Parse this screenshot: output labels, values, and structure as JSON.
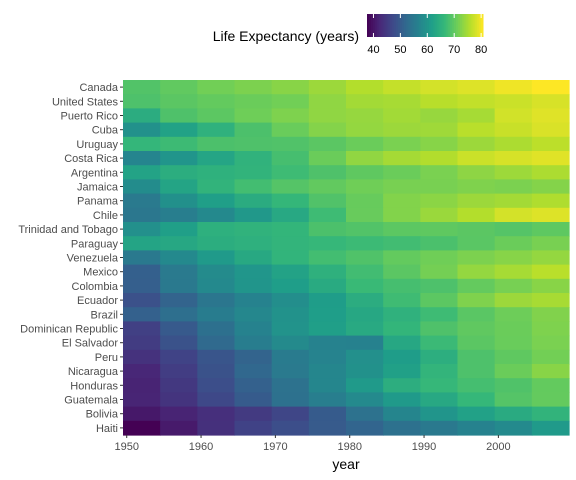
{
  "chart_data": {
    "type": "heatmap",
    "title": "",
    "xlabel": "year",
    "ylabel": "",
    "x": [
      1952,
      1957,
      1962,
      1967,
      1972,
      1977,
      1982,
      1987,
      1992,
      1997,
      2002,
      2007
    ],
    "x_ticks": [
      1950,
      1960,
      1970,
      1980,
      1990,
      2000
    ],
    "xlim": [
      1949.5,
      2009.5
    ],
    "y": [
      "Canada",
      "United States",
      "Puerto Rico",
      "Cuba",
      "Uruguay",
      "Costa Rica",
      "Argentina",
      "Jamaica",
      "Panama",
      "Chile",
      "Trinidad and Tobago",
      "Paraguay",
      "Venezuela",
      "Mexico",
      "Colombia",
      "Ecuador",
      "Brazil",
      "Dominican Republic",
      "El Salvador",
      "Peru",
      "Nicaragua",
      "Honduras",
      "Guatemala",
      "Bolivia",
      "Haiti"
    ],
    "values": [
      [
        68.8,
        70.0,
        71.3,
        72.1,
        72.9,
        74.2,
        75.8,
        76.9,
        77.9,
        78.6,
        79.8,
        80.7
      ],
      [
        68.4,
        69.5,
        70.2,
        70.8,
        71.3,
        73.4,
        74.7,
        75.0,
        76.1,
        76.8,
        77.3,
        78.2
      ],
      [
        64.3,
        68.5,
        69.6,
        71.1,
        72.2,
        73.4,
        73.8,
        74.6,
        73.9,
        74.9,
        77.8,
        78.7
      ],
      [
        59.4,
        62.3,
        65.2,
        68.3,
        70.7,
        72.6,
        73.7,
        74.2,
        74.4,
        76.2,
        77.2,
        78.3
      ],
      [
        66.1,
        67.0,
        68.3,
        68.5,
        68.7,
        69.5,
        70.8,
        71.9,
        72.8,
        74.2,
        75.3,
        76.4
      ],
      [
        57.2,
        60.0,
        62.8,
        65.4,
        67.8,
        70.8,
        73.5,
        74.8,
        75.7,
        77.3,
        78.1,
        78.8
      ],
      [
        62.5,
        64.4,
        65.1,
        65.6,
        67.1,
        68.5,
        69.9,
        70.8,
        71.9,
        73.3,
        74.3,
        75.3
      ],
      [
        58.5,
        62.6,
        65.6,
        67.5,
        69.0,
        70.1,
        71.2,
        71.8,
        71.8,
        72.3,
        72.0,
        72.6
      ],
      [
        55.2,
        59.2,
        61.8,
        64.1,
        66.2,
        68.7,
        70.5,
        72.5,
        73.1,
        74.2,
        74.7,
        75.5
      ],
      [
        54.7,
        56.1,
        57.9,
        60.5,
        63.4,
        67.1,
        70.6,
        72.5,
        74.1,
        75.8,
        77.9,
        78.6
      ],
      [
        59.1,
        61.8,
        64.9,
        65.4,
        65.9,
        68.3,
        68.8,
        69.6,
        69.9,
        69.5,
        68.98,
        69.8
      ],
      [
        62.6,
        63.2,
        64.4,
        64.95,
        65.8,
        66.4,
        66.9,
        67.4,
        68.2,
        69.4,
        70.8,
        71.8
      ],
      [
        55.1,
        57.9,
        60.8,
        63.5,
        65.7,
        67.5,
        68.6,
        70.2,
        71.2,
        72.1,
        72.8,
        73.7
      ],
      [
        50.8,
        55.2,
        58.3,
        60.1,
        62.4,
        65.0,
        67.4,
        69.5,
        71.5,
        73.7,
        74.9,
        76.2
      ],
      [
        50.6,
        55.1,
        57.9,
        60.0,
        61.6,
        63.8,
        66.7,
        67.8,
        68.4,
        70.3,
        71.7,
        72.9
      ],
      [
        48.4,
        51.4,
        54.6,
        56.7,
        58.8,
        61.3,
        64.3,
        67.2,
        69.6,
        72.3,
        74.2,
        74.99
      ],
      [
        50.9,
        53.3,
        55.7,
        57.6,
        59.5,
        61.5,
        63.3,
        65.2,
        67.1,
        69.4,
        71.0,
        72.4
      ],
      [
        45.9,
        49.8,
        53.5,
        56.8,
        59.6,
        61.8,
        63.7,
        66.0,
        68.5,
        69.96,
        70.8,
        72.2
      ],
      [
        45.3,
        48.6,
        52.3,
        55.9,
        58.2,
        56.7,
        56.6,
        63.2,
        66.8,
        69.5,
        70.7,
        71.9
      ],
      [
        43.9,
        46.3,
        49.1,
        51.4,
        55.4,
        57.0,
        59.1,
        61.4,
        64.6,
        68.4,
        69.9,
        71.4
      ],
      [
        42.3,
        45.4,
        48.6,
        51.9,
        55.2,
        57.5,
        59.3,
        62.0,
        65.8,
        68.4,
        70.8,
        72.9
      ],
      [
        41.9,
        44.7,
        48.0,
        50.9,
        53.9,
        57.4,
        60.9,
        64.5,
        66.4,
        67.7,
        68.6,
        70.2
      ],
      [
        42.0,
        44.1,
        47.0,
        50.0,
        53.7,
        56.0,
        58.1,
        60.8,
        63.4,
        66.3,
        68.98,
        70.3
      ],
      [
        40.4,
        41.9,
        43.4,
        45.0,
        46.7,
        50.0,
        53.9,
        57.3,
        59.96,
        62.1,
        63.9,
        65.6
      ],
      [
        37.6,
        40.7,
        43.6,
        46.2,
        48.0,
        49.9,
        51.5,
        53.6,
        55.1,
        56.7,
        58.1,
        60.9
      ]
    ],
    "legend": {
      "title": "Life Expectancy (years)",
      "ticks": [
        40,
        50,
        60,
        70,
        80
      ],
      "range": [
        37.6,
        80.7
      ],
      "position": "top-right"
    },
    "colormap": [
      "#440154",
      "#482878",
      "#3e4989",
      "#31688e",
      "#26828e",
      "#1f9e89",
      "#35b779",
      "#6ece58",
      "#b5de2b",
      "#fde725"
    ],
    "grid": false
  }
}
